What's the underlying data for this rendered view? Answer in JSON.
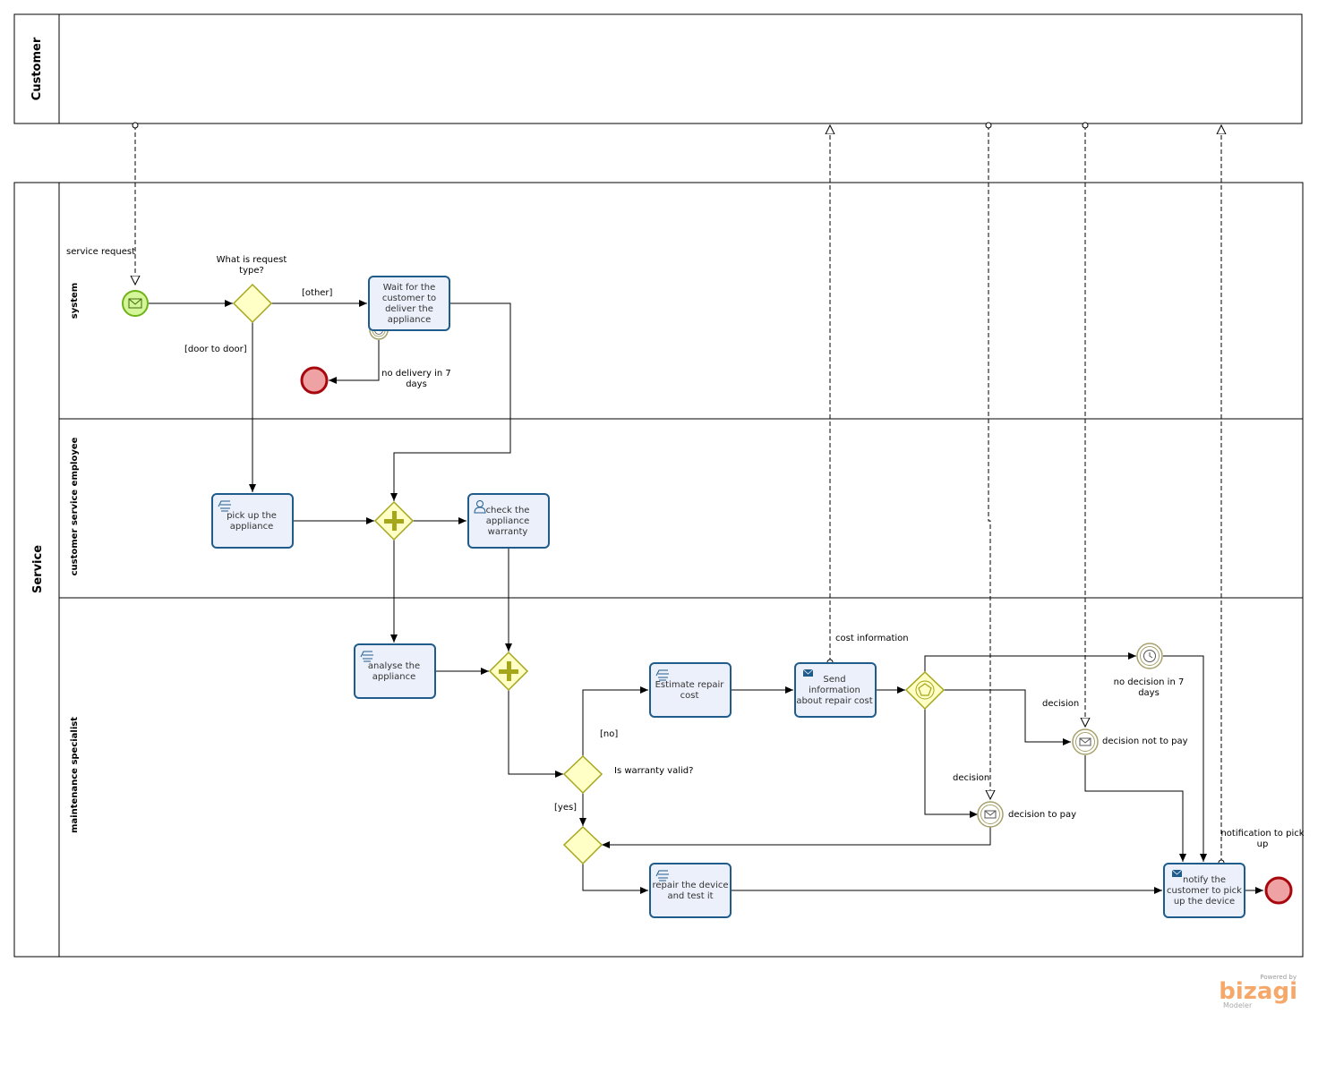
{
  "pools": {
    "customer": "Customer",
    "service": "Service"
  },
  "lanes": {
    "system": "system",
    "cse": "customer service employee",
    "ms": "maintenance specialist"
  },
  "tasks": {
    "wait": [
      "Wait for the",
      "customer to",
      "deliver the",
      "appliance"
    ],
    "pickup": [
      "pick up the",
      "appliance"
    ],
    "check": [
      "check the",
      "appliance",
      "warranty"
    ],
    "analyse": [
      "analyse the",
      "appliance"
    ],
    "estimate": [
      "Estimate repair",
      "cost"
    ],
    "send": [
      "Send",
      "information",
      "about repair cost"
    ],
    "repair": [
      "repair the device",
      "and test it"
    ],
    "notify": [
      "notify the",
      "customer to pick",
      "up the device"
    ]
  },
  "gateways": {
    "request_type": [
      "What is request",
      "type?"
    ],
    "warranty": "Is warranty valid?"
  },
  "events": {
    "start": "service request",
    "no_delivery": [
      "no delivery in 7",
      "days"
    ],
    "no_decision": [
      "no decision in 7",
      "days"
    ],
    "not_pay": "decision not to pay",
    "pay": "decision to pay"
  },
  "flow_labels": {
    "other": "[other]",
    "door": "[door to door]",
    "no": "[no]",
    "yes": "[yes]"
  },
  "message_labels": {
    "cost": "cost information",
    "decision1": "decision",
    "decision2": "decision",
    "notification": [
      "notification to pick",
      "up"
    ]
  },
  "watermark": {
    "powered": "Powered by",
    "brand": "bizagi",
    "product": "Modeler"
  },
  "colors": {
    "task_fill": "#ECF0FB",
    "task_stroke": "#1F5C8C",
    "gateway_fill": "#FFFFC6",
    "gateway_stroke": "#A6A61B",
    "start_fill": "#D4F598",
    "start_stroke": "#6FB219",
    "end_fill": "#EEA2A4",
    "end_stroke": "#A8080D",
    "intermediate_stroke": "#A6A06A",
    "brand": "#F6A86B"
  }
}
